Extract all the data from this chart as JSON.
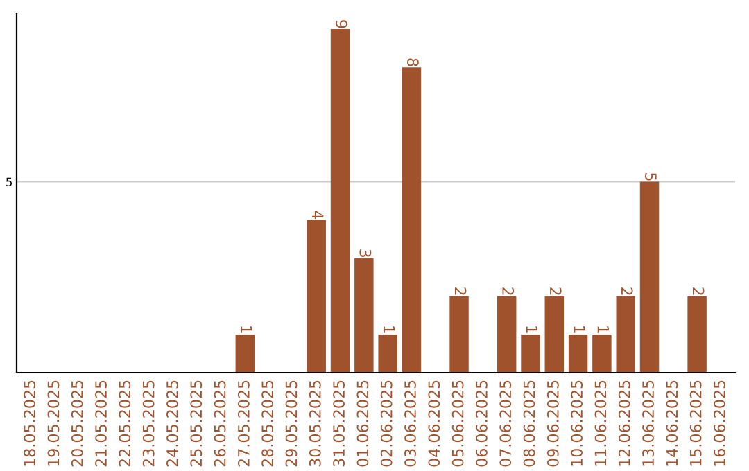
{
  "chart_data": {
    "type": "bar",
    "categories": [
      "18.05.2025",
      "19.05.2025",
      "20.05.2025",
      "21.05.2025",
      "22.05.2025",
      "23.05.2025",
      "24.05.2025",
      "25.05.2025",
      "26.05.2025",
      "27.05.2025",
      "28.05.2025",
      "29.05.2025",
      "30.05.2025",
      "31.05.2025",
      "01.06.2025",
      "02.06.2025",
      "03.06.2025",
      "04.06.2025",
      "05.06.2025",
      "06.06.2025",
      "07.06.2025",
      "08.06.2025",
      "09.06.2025",
      "10.06.2025",
      "11.06.2025",
      "12.06.2025",
      "13.06.2025",
      "14.06.2025",
      "15.06.2025",
      "16.06.2025"
    ],
    "values": [
      0,
      0,
      0,
      0,
      0,
      0,
      0,
      0,
      0,
      1,
      0,
      0,
      4,
      9,
      3,
      1,
      8,
      0,
      2,
      0,
      2,
      1,
      2,
      1,
      1,
      2,
      5,
      0,
      2,
      0
    ],
    "value_labels": [
      null,
      null,
      null,
      null,
      null,
      null,
      null,
      null,
      null,
      "1",
      null,
      null,
      "4",
      "9",
      "3",
      "1",
      "8",
      null,
      "2",
      null,
      "2",
      "1",
      "2",
      "1",
      "1",
      "2",
      "5",
      null,
      "2",
      null
    ],
    "color": "#a0522d",
    "ylim": [
      0,
      9.4
    ],
    "yticks": [
      5
    ],
    "grid": "y"
  }
}
